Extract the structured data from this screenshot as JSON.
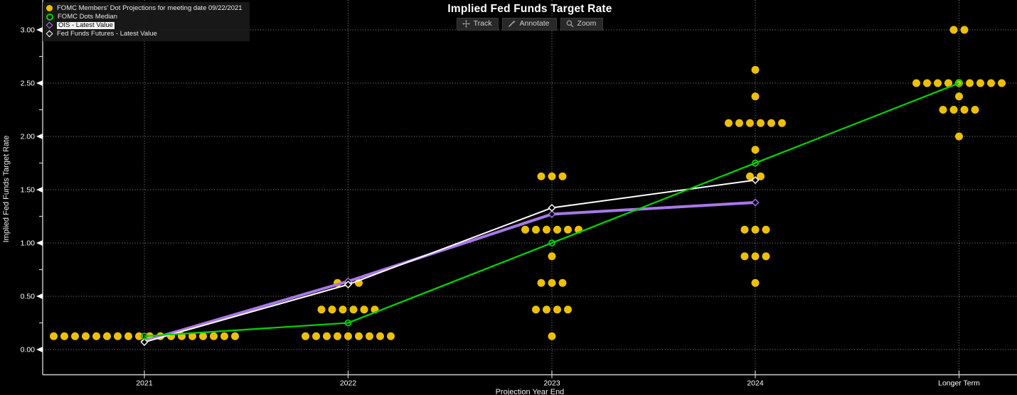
{
  "header": {
    "title": "Implied Fed Funds Target Rate"
  },
  "toolbar": {
    "items": [
      {
        "label": "Track",
        "icon": "move-icon"
      },
      {
        "label": "Annotate",
        "icon": "pencil-icon"
      },
      {
        "label": "Zoom",
        "icon": "magnifier-icon"
      }
    ]
  },
  "axes": {
    "y_title": "Implied Fed Funds Target Rate",
    "x_title": "Projection Year End",
    "y_ticks": [
      "3.00",
      "2.50",
      "2.00",
      "1.50",
      "1.00",
      "0.50",
      "0.00"
    ],
    "x_ticks": [
      "2021",
      "2022",
      "2023",
      "2024",
      "Longer Term"
    ]
  },
  "legend": {
    "highlighted_label": "OIS - Latest Value"
  },
  "chart_data": {
    "type": "scatter",
    "title": "Implied Fed Funds Target Rate",
    "xlabel": "Projection Year End",
    "ylabel": "Implied Fed Funds Target Rate",
    "categories": [
      "2021",
      "2022",
      "2023",
      "2024",
      "Longer Term"
    ],
    "ylim": [
      0.0,
      3.0
    ],
    "ytick_interval": 0.5,
    "grid": "dotted",
    "legend_position": "top-left",
    "colors": {
      "background": "#000000",
      "grid": "#909090",
      "axis": "#cfcfcf",
      "tick_text": "#ffffff"
    },
    "series": [
      {
        "name": "FOMC Members' Dot Projections for meeting date 09/22/2021",
        "type": "dot-cluster",
        "marker": "filled-circle",
        "color": "#edc008",
        "clusters": [
          {
            "category": "2021",
            "rate": 0.125,
            "count": 18
          },
          {
            "category": "2022",
            "rate": 0.125,
            "count": 9
          },
          {
            "category": "2022",
            "rate": 0.375,
            "count": 6
          },
          {
            "category": "2022",
            "rate": 0.625,
            "count": 3
          },
          {
            "category": "2023",
            "rate": 0.125,
            "count": 1
          },
          {
            "category": "2023",
            "rate": 0.375,
            "count": 4
          },
          {
            "category": "2023",
            "rate": 0.625,
            "count": 3
          },
          {
            "category": "2023",
            "rate": 0.875,
            "count": 1
          },
          {
            "category": "2023",
            "rate": 1.125,
            "count": 6
          },
          {
            "category": "2023",
            "rate": 1.625,
            "count": 3
          },
          {
            "category": "2024",
            "rate": 0.625,
            "count": 1
          },
          {
            "category": "2024",
            "rate": 0.875,
            "count": 3
          },
          {
            "category": "2024",
            "rate": 1.125,
            "count": 3
          },
          {
            "category": "2024",
            "rate": 1.625,
            "count": 2
          },
          {
            "category": "2024",
            "rate": 1.875,
            "count": 1
          },
          {
            "category": "2024",
            "rate": 2.125,
            "count": 6
          },
          {
            "category": "2024",
            "rate": 2.375,
            "count": 1
          },
          {
            "category": "2024",
            "rate": 2.625,
            "count": 1
          },
          {
            "category": "Longer Term",
            "rate": 2.0,
            "count": 1
          },
          {
            "category": "Longer Term",
            "rate": 2.25,
            "count": 4
          },
          {
            "category": "Longer Term",
            "rate": 2.375,
            "count": 1
          },
          {
            "category": "Longer Term",
            "rate": 2.5,
            "count": 9
          },
          {
            "category": "Longer Term",
            "rate": 3.0,
            "count": 2
          }
        ]
      },
      {
        "name": "FOMC Dots Median",
        "type": "line",
        "marker": "open-circle",
        "color": "#00d100",
        "width": 2.3,
        "points": [
          {
            "category": "2021",
            "rate": 0.125
          },
          {
            "category": "2022",
            "rate": 0.25
          },
          {
            "category": "2023",
            "rate": 1.0
          },
          {
            "category": "2024",
            "rate": 1.75
          },
          {
            "category": "Longer Term",
            "rate": 2.5
          }
        ]
      },
      {
        "name": "OIS - Latest Value",
        "type": "line",
        "marker": "open-diamond",
        "color": "#a878e8",
        "width": 4,
        "points": [
          {
            "category": "2021",
            "rate": 0.08
          },
          {
            "category": "2022",
            "rate": 0.64
          },
          {
            "category": "2023",
            "rate": 1.27
          },
          {
            "category": "2024",
            "rate": 1.38
          }
        ]
      },
      {
        "name": "Fed Funds Futures - Latest Value",
        "type": "line",
        "marker": "open-diamond",
        "color": "#ffffff",
        "width": 2,
        "points": [
          {
            "category": "2021",
            "rate": 0.07
          },
          {
            "category": "2022",
            "rate": 0.61
          },
          {
            "category": "2023",
            "rate": 1.33
          },
          {
            "category": "2024",
            "rate": 1.59
          }
        ]
      }
    ]
  }
}
